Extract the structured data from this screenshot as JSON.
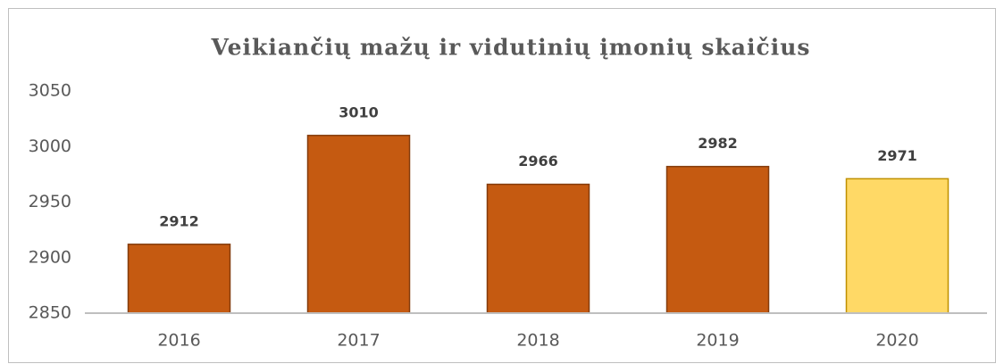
{
  "chart_data": {
    "type": "bar",
    "title": "Veikiančių mažų ir vidutinių įmonių skaičius",
    "categories": [
      "2016",
      "2017",
      "2018",
      "2019",
      "2020"
    ],
    "values": [
      2912,
      3010,
      2966,
      2982,
      2971
    ],
    "colors": [
      "#c55a11",
      "#c55a11",
      "#c55a11",
      "#c55a11",
      "#ffd966"
    ],
    "ylim": [
      2850,
      3050
    ],
    "yticks": [
      2850,
      2900,
      2950,
      3000,
      3050
    ],
    "grid": false
  }
}
